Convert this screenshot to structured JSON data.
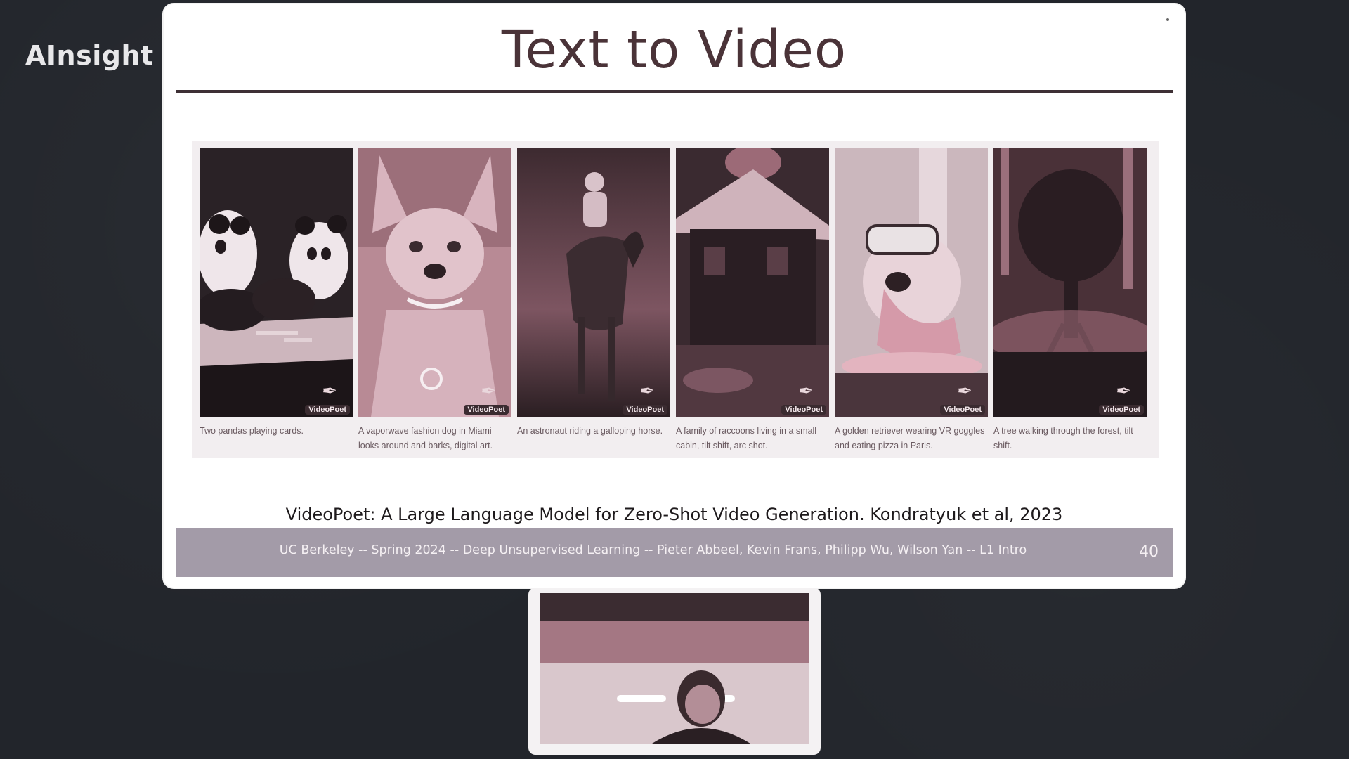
{
  "watermark": {
    "brand": "AInsight",
    "logo_icon": "bilibili-logo"
  },
  "slide": {
    "title": "Text to Video",
    "panels": [
      {
        "caption": "Two pandas playing cards.",
        "badge": "VideoPoet",
        "scene": "pandas"
      },
      {
        "caption": "A vaporwave fashion dog in Miami looks around and barks, digital art.",
        "badge": "VideoPoet",
        "scene": "dog"
      },
      {
        "caption": "An astronaut riding a galloping horse.",
        "badge": "VideoPoet",
        "scene": "astronaut"
      },
      {
        "caption": "A family of raccoons living in a small cabin, tilt shift, arc shot.",
        "badge": "VideoPoet",
        "scene": "cabin"
      },
      {
        "caption": "A golden retriever wearing VR goggles and eating pizza in Paris.",
        "badge": "VideoPoet",
        "scene": "retriever"
      },
      {
        "caption": "A tree walking through the forest, tilt shift.",
        "badge": "VideoPoet",
        "scene": "tree"
      }
    ],
    "citation": "VideoPoet: A Large Language Model for Zero-Shot Video Generation. Kondratyuk et al, 2023",
    "footer": "UC Berkeley -- Spring 2024 -- Deep Unsupervised Learning -- Pieter Abbeel, Kevin Frans, Philipp Wu, Wilson Yan -- L1 Intro",
    "page_number": "40"
  },
  "camera": {
    "feed": "presenter-webcam"
  },
  "colors": {
    "background": "#22252b",
    "title": "#4a3338",
    "footer_bar": "#a39ba8",
    "tint": "#c99aa6"
  }
}
